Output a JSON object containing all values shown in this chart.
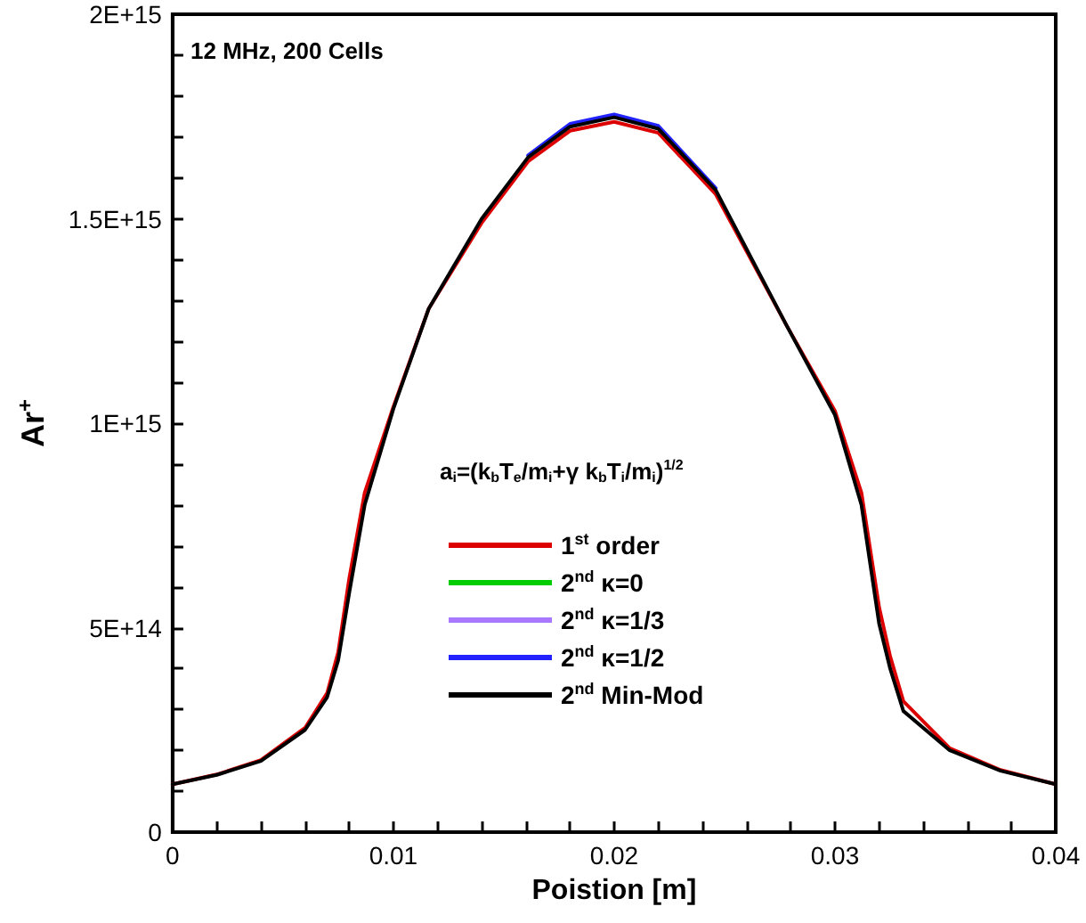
{
  "chart_data": {
    "type": "line",
    "xlabel": "Poistion [m]",
    "ylabel": "Ar$^{+}$",
    "annotations": [
      "12 MHz, 200 Cells"
    ],
    "legend_title": "a$_{i}$=(k$_{b}$T$_{e}$/m$_{i}$+γ k$_{b}$T$_{i}$/m$_{i}$)$^{1/2}$",
    "x": [
      0,
      0.002,
      0.004,
      0.006,
      0.007,
      0.0075,
      0.008,
      0.0087,
      0.01,
      0.0116,
      0.014,
      0.0161,
      0.018,
      0.02,
      0.022,
      0.0246,
      0.0278,
      0.03,
      0.0312,
      0.032,
      0.0325,
      0.0331,
      0.0352,
      0.0375,
      0.04
    ],
    "series": [
      {
        "name": "1$^{st}$ order",
        "color": "#dd0000",
        "values": [
          117000000000000.0,
          141000000000000.0,
          176000000000000.0,
          255000000000000.0,
          340000000000000.0,
          440000000000000.0,
          620000000000000.0,
          830000000000000.0,
          1040000000000000.0,
          1280000000000000.0,
          1490000000000000.0,
          1640000000000000.0,
          1715000000000000.0,
          1737000000000000.0,
          1710000000000000.0,
          1560000000000000.0,
          1240000000000000.0,
          1030000000000000.0,
          830000000000000.0,
          550000000000000.0,
          430000000000000.0,
          320000000000000.0,
          205000000000000.0,
          152000000000000.0,
          117000000000000.0
        ]
      },
      {
        "name": "2$^{nd}$ κ=0",
        "color": "#00cc00",
        "values": [
          null,
          null,
          null,
          null,
          null,
          null,
          null,
          null,
          null,
          null,
          null,
          null,
          null,
          null,
          null,
          null,
          null,
          null,
          null,
          null,
          null,
          null,
          null,
          null,
          null
        ]
      },
      {
        "name": "2$^{nd}$ κ=1/3",
        "color": "#aa77ff",
        "values": [
          null,
          null,
          null,
          null,
          null,
          null,
          null,
          null,
          null,
          null,
          null,
          null,
          null,
          null,
          null,
          null,
          null,
          null,
          null,
          null,
          null,
          null,
          null,
          null,
          null
        ]
      },
      {
        "name": "2$^{nd}$ κ=1/2",
        "color": "#2222ff",
        "values": [
          null,
          null,
          null,
          null,
          null,
          null,
          null,
          null,
          null,
          null,
          null,
          1655000000000000.0,
          1732000000000000.0,
          1755000000000000.0,
          1727000000000000.0,
          1575000000000000.0,
          null,
          null,
          null,
          null,
          null,
          null,
          null,
          null,
          null
        ]
      },
      {
        "name": "2$^{nd}$ Min-Mod",
        "color": "#000000",
        "values": [
          117000000000000.0,
          140000000000000.0,
          174000000000000.0,
          250000000000000.0,
          330000000000000.0,
          420000000000000.0,
          585000000000000.0,
          800000000000000.0,
          1035000000000000.0,
          1280000000000000.0,
          1500000000000000.0,
          1650000000000000.0,
          1725000000000000.0,
          1748000000000000.0,
          1720000000000000.0,
          1570000000000000.0,
          1240000000000000.0,
          1020000000000000.0,
          800000000000000.0,
          510000000000000.0,
          400000000000000.0,
          296000000000000.0,
          200000000000000.0,
          150000000000000.0,
          117000000000000.0
        ]
      }
    ],
    "xlim": [
      0,
      0.04
    ],
    "xticks": [
      0,
      {
        "value": 0.002,
        "label": null
      },
      {
        "value": 0.004,
        "label": null
      },
      {
        "value": 0.006,
        "label": null
      },
      {
        "value": 0.008,
        "label": null
      },
      0.01,
      {
        "value": 0.012,
        "label": null
      },
      {
        "value": 0.014,
        "label": null
      },
      {
        "value": 0.016,
        "label": null
      },
      {
        "value": 0.018,
        "label": null
      },
      0.02,
      {
        "value": 0.022,
        "label": null
      },
      {
        "value": 0.024,
        "label": null
      },
      {
        "value": 0.026,
        "label": null
      },
      {
        "value": 0.028,
        "label": null
      },
      0.03,
      {
        "value": 0.032,
        "label": null
      },
      {
        "value": 0.034,
        "label": null
      },
      {
        "value": 0.036,
        "label": null
      },
      {
        "value": 0.038,
        "label": null
      },
      0.04
    ],
    "ylim": [
      0,
      2000000000000000.0
    ],
    "yticks": [
      0,
      {
        "value": 100000000000000.0,
        "label": null
      },
      {
        "value": 200000000000000.0,
        "label": null
      },
      {
        "value": 300000000000000.0,
        "label": null
      },
      {
        "value": 400000000000000.0,
        "label": null
      },
      {
        "value": 500000000000000.0,
        "label": "5E+14"
      },
      {
        "value": 600000000000000.0,
        "label": null
      },
      {
        "value": 700000000000000.0,
        "label": null
      },
      {
        "value": 800000000000000.0,
        "label": null
      },
      {
        "value": 900000000000000.0,
        "label": null
      },
      {
        "value": 1000000000000000.0,
        "label": "1E+15"
      },
      {
        "value": 1100000000000000.0,
        "label": null
      },
      {
        "value": 1200000000000000.0,
        "label": null
      },
      {
        "value": 1300000000000000.0,
        "label": null
      },
      {
        "value": 1400000000000000.0,
        "label": null
      },
      {
        "value": 1500000000000000.0,
        "label": "1.5E+15"
      },
      {
        "value": 1600000000000000.0,
        "label": null
      },
      {
        "value": 1700000000000000.0,
        "label": null
      },
      {
        "value": 1800000000000000.0,
        "label": null
      },
      {
        "value": 1900000000000000.0,
        "label": null
      },
      {
        "value": 2000000000000000.0,
        "label": "2E+15"
      }
    ],
    "grid": false,
    "legend": "center",
    "marker": "none",
    "line_style": "solid"
  }
}
